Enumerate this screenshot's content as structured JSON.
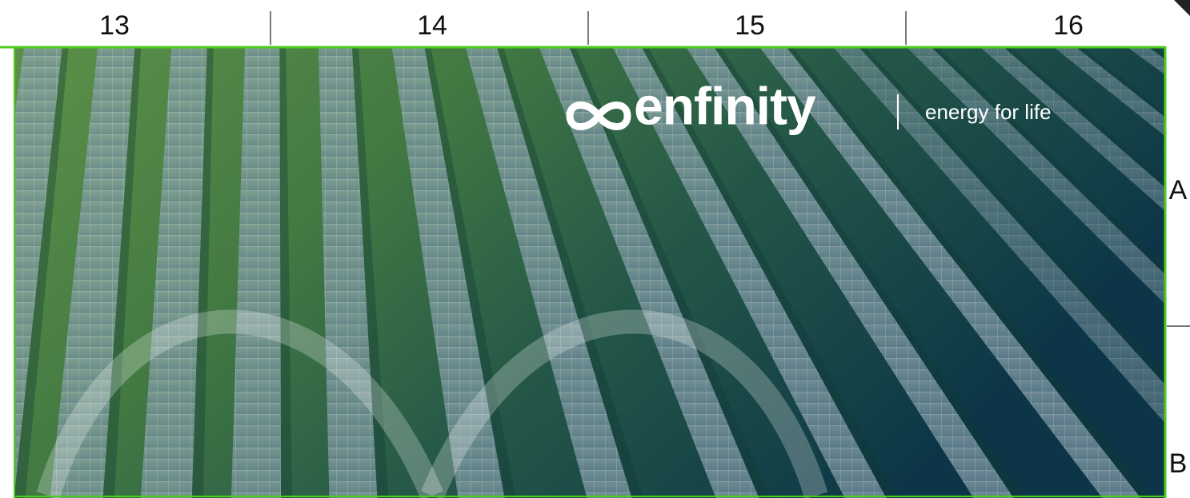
{
  "border": {
    "columns": [
      "13",
      "14",
      "15",
      "16"
    ],
    "rows": [
      "A",
      "B"
    ]
  },
  "logo": {
    "name": "enfinity",
    "tagline": "energy for life"
  }
}
